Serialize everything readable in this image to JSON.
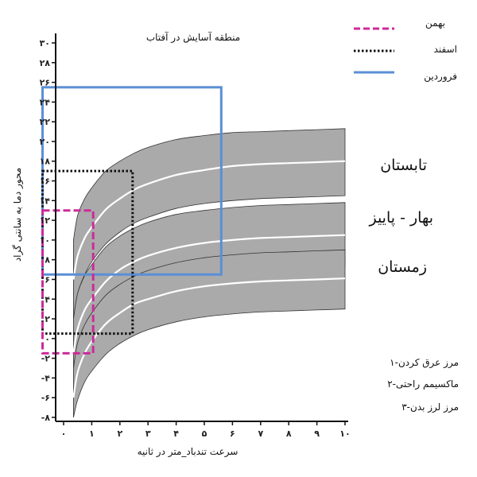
{
  "chart_data": {
    "type": "area",
    "title": "منطقه آسایش در آفتاب",
    "xlabel": "سرعت تندباد_متر در ثانیه",
    "ylabel": "محور دما به سانتی گراد",
    "xlim": [
      0,
      10
    ],
    "ylim": [
      -8,
      30
    ],
    "x_ticks": [
      {
        "value": 0,
        "label": "۰"
      },
      {
        "value": 1,
        "label": "۱"
      },
      {
        "value": 2,
        "label": "۲"
      },
      {
        "value": 3,
        "label": "۳"
      },
      {
        "value": 4,
        "label": "۴"
      },
      {
        "value": 5,
        "label": "۵"
      },
      {
        "value": 6,
        "label": "۶"
      },
      {
        "value": 7,
        "label": "۷"
      },
      {
        "value": 8,
        "label": "۸"
      },
      {
        "value": 9,
        "label": "۹"
      },
      {
        "value": 10,
        "label": "۱۰"
      }
    ],
    "y_ticks": [
      {
        "value": -8,
        "label": "-۸"
      },
      {
        "value": -6,
        "label": "-۶"
      },
      {
        "value": -4,
        "label": "-۴"
      },
      {
        "value": -2,
        "label": "-۲"
      },
      {
        "value": 0,
        "label": "۰"
      },
      {
        "value": 2,
        "label": "۲"
      },
      {
        "value": 4,
        "label": "۴"
      },
      {
        "value": 6,
        "label": "۶"
      },
      {
        "value": 8,
        "label": "۸"
      },
      {
        "value": 10,
        "label": "۱۰"
      },
      {
        "value": 12,
        "label": "۱۲"
      },
      {
        "value": 14,
        "label": "۱۴"
      },
      {
        "value": 16,
        "label": "۱۶"
      },
      {
        "value": 18,
        "label": "۱۸"
      },
      {
        "value": 20,
        "label": "۲۰"
      },
      {
        "value": 22,
        "label": "۲۲"
      },
      {
        "value": 24,
        "label": "۲۴"
      },
      {
        "value": 26,
        "label": "۲۶"
      },
      {
        "value": 28,
        "label": "۲۸"
      },
      {
        "value": 30,
        "label": "۳۰"
      }
    ],
    "x": [
      0.35,
      0.5,
      0.75,
      1,
      1.5,
      2,
      2.5,
      3,
      4,
      5,
      6,
      7,
      8,
      9,
      10
    ],
    "bands": [
      {
        "name": "تابستان",
        "upper": [
          10,
          12.5,
          14.2,
          15.3,
          17.0,
          18.0,
          18.8,
          19.4,
          20.2,
          20.6,
          20.9,
          21.0,
          21.1,
          21.2,
          21.3
        ],
        "middle": [
          6,
          8.4,
          10.2,
          11.3,
          13.1,
          14.2,
          15.1,
          15.7,
          16.6,
          17.1,
          17.5,
          17.7,
          17.8,
          17.9,
          18.0
        ],
        "lower": [
          2,
          4.6,
          6.5,
          7.8,
          9.6,
          10.8,
          11.7,
          12.3,
          13.2,
          13.7,
          14.0,
          14.2,
          14.3,
          14.4,
          14.5
        ]
      },
      {
        "name": "بهار - پاییز",
        "upper": [
          2,
          4.6,
          6.4,
          7.5,
          9.3,
          10.4,
          11.2,
          11.8,
          12.6,
          13.0,
          13.3,
          13.5,
          13.6,
          13.7,
          13.8
        ],
        "middle": [
          -1.5,
          1.0,
          2.9,
          4.0,
          5.8,
          7.0,
          7.8,
          8.4,
          9.2,
          9.7,
          10.0,
          10.2,
          10.3,
          10.4,
          10.5
        ],
        "lower": [
          -5,
          -2.5,
          -0.6,
          0.6,
          2.4,
          3.6,
          4.5,
          5.1,
          5.9,
          6.4,
          6.7,
          6.9,
          7.0,
          7.1,
          7.2
        ]
      },
      {
        "name": "زمستان",
        "upper": [
          -3,
          -0.4,
          1.4,
          2.6,
          4.4,
          5.5,
          6.3,
          6.9,
          7.7,
          8.2,
          8.5,
          8.7,
          8.8,
          8.9,
          9.0
        ],
        "middle": [
          -6,
          -3.4,
          -1.5,
          -0.3,
          1.5,
          2.6,
          3.5,
          4.0,
          4.8,
          5.3,
          5.6,
          5.8,
          5.9,
          6.0,
          6.1
        ],
        "lower": [
          -8,
          -6.2,
          -4.4,
          -3.3,
          -1.6,
          -0.5,
          0.3,
          0.9,
          1.7,
          2.2,
          2.5,
          2.7,
          2.8,
          2.9,
          3.0
        ]
      }
    ],
    "band_color": "#aaaaaa",
    "middle_line_color": "#ffffff",
    "rectangles": [
      {
        "name": "بهمن",
        "style": "dashed",
        "color": "#cc2a9a",
        "x0": -0.75,
        "x1": 1.05,
        "y0": -1.5,
        "y1": 13
      },
      {
        "name": "اسفند",
        "style": "dotted",
        "color": "#111111",
        "x0": -0.75,
        "x1": 2.45,
        "y0": 0.5,
        "y1": 17
      },
      {
        "name": "فروردین",
        "style": "solid",
        "color": "#5a8fd6",
        "x0": -0.75,
        "x1": 5.6,
        "y0": 6.5,
        "y1": 25.5
      }
    ],
    "legend": [
      {
        "label": "بهمن",
        "style": "dashed",
        "color": "#cc2a9a"
      },
      {
        "label": "اسفند",
        "style": "dotted",
        "color": "#111111"
      },
      {
        "label": "فروردین",
        "style": "solid",
        "color": "#5a8fd6"
      }
    ],
    "legend_position": "top-right",
    "band_labels": [
      "تابستان",
      "بهار - پاییز",
      "زمستان"
    ],
    "notes": [
      "۱-مرز عرق کردن",
      "۲-ماکسیمم راحتی",
      "۳-مرز لرز بدن"
    ],
    "grid": false
  }
}
